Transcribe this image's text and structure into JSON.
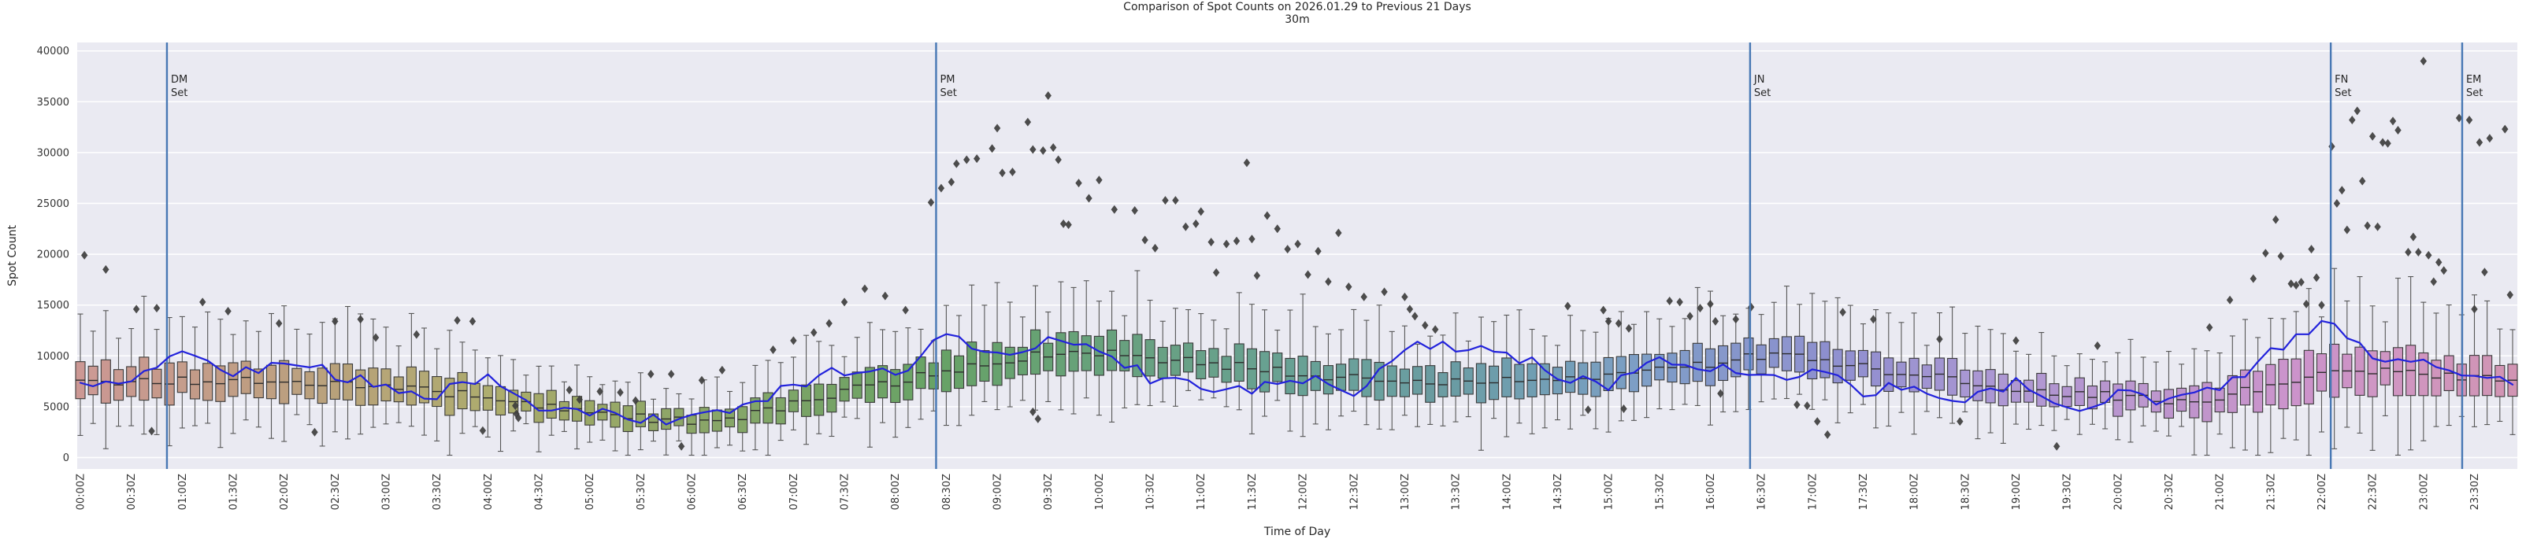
{
  "chart_data": {
    "type": "boxplot+line+scatter",
    "title": "Comparison of Spot Counts on 2026.01.29 to Previous 21 Days",
    "subtitle": "30m",
    "xlabel": "Time of Day",
    "ylabel": "Spot Count",
    "ylim": [
      0,
      40000
    ],
    "grid": true,
    "legend": "none",
    "yticks": [
      0,
      5000,
      10000,
      15000,
      20000,
      25000,
      30000,
      35000,
      40000
    ],
    "ytick_labels": [
      "0",
      "5000",
      "10000",
      "15000",
      "20000",
      "25000",
      "30000",
      "35000",
      "40000"
    ],
    "x_tick_labels": [
      "00:00Z",
      "00:30Z",
      "01:00Z",
      "01:30Z",
      "02:00Z",
      "02:30Z",
      "03:00Z",
      "03:30Z",
      "04:00Z",
      "04:30Z",
      "05:00Z",
      "05:30Z",
      "06:00Z",
      "06:30Z",
      "07:00Z",
      "07:30Z",
      "08:00Z",
      "08:30Z",
      "09:00Z",
      "09:30Z",
      "10:00Z",
      "10:30Z",
      "11:00Z",
      "11:30Z",
      "12:00Z",
      "12:30Z",
      "13:00Z",
      "13:30Z",
      "14:00Z",
      "14:30Z",
      "15:00Z",
      "15:30Z",
      "16:00Z",
      "16:30Z",
      "17:00Z",
      "17:30Z",
      "18:00Z",
      "18:30Z",
      "19:00Z",
      "19:30Z",
      "20:00Z",
      "20:30Z",
      "21:00Z",
      "21:30Z",
      "22:00Z",
      "22:30Z",
      "23:00Z",
      "23:30Z"
    ],
    "bin_minutes": 7.5,
    "n_bins": 192,
    "box_anchors": {
      "t": [
        0,
        0.5,
        1,
        1.5,
        2,
        2.5,
        3,
        3.5,
        4,
        4.5,
        5,
        5.5,
        6,
        6.5,
        7,
        7.5,
        8,
        8.5,
        9,
        9.5,
        10,
        10.5,
        11,
        11.5,
        12,
        12.5,
        13,
        13.5,
        14,
        14.5,
        15,
        15.5,
        16,
        16.5,
        17,
        17.5,
        18,
        18.5,
        19,
        19.5,
        20,
        20.5,
        21,
        21.5,
        22,
        22.5,
        23,
        23.5,
        24
      ],
      "median": [
        7600,
        7400,
        7600,
        7700,
        7500,
        7400,
        7000,
        6500,
        5900,
        5200,
        4500,
        3900,
        3600,
        4100,
        5200,
        6500,
        7400,
        8600,
        9600,
        10200,
        10400,
        9900,
        9300,
        8800,
        8300,
        7800,
        7500,
        7600,
        7700,
        7800,
        8000,
        8600,
        9300,
        9900,
        9700,
        8900,
        8300,
        7600,
        6800,
        6300,
        6000,
        5700,
        5900,
        7000,
        8000,
        8400,
        8200,
        7800,
        7500
      ]
    },
    "spread_anchors": {
      "t": [
        0,
        1,
        2,
        3,
        4,
        5,
        6,
        7,
        8,
        9,
        10,
        11,
        12,
        13,
        14,
        15,
        16,
        17,
        18,
        19,
        20,
        21,
        22,
        23,
        24
      ],
      "iqr_half": [
        1700,
        1750,
        1650,
        1500,
        1300,
        1000,
        900,
        1250,
        1500,
        1700,
        1700,
        1600,
        1500,
        1500,
        1550,
        1550,
        1650,
        1550,
        1400,
        1300,
        1200,
        1500,
        2100,
        1900,
        1700
      ]
    },
    "line_anchors": {
      "t": [
        0,
        0.5,
        1,
        1.5,
        2,
        2.5,
        3,
        3.5,
        4,
        4.5,
        5,
        5.5,
        6,
        6.5,
        7,
        7.5,
        8,
        8.5,
        9,
        9.5,
        10,
        10.5,
        11,
        11.5,
        12,
        12.5,
        13,
        13.5,
        14,
        14.5,
        15,
        15.5,
        16,
        16.5,
        17,
        17.5,
        18,
        18.5,
        19,
        19.5,
        20,
        20.5,
        21,
        21.5,
        22,
        22.5,
        23,
        23.5,
        24
      ],
      "value": [
        6900,
        7600,
        10600,
        8100,
        9500,
        8200,
        6900,
        6300,
        8300,
        4200,
        4600,
        3500,
        4100,
        5300,
        6900,
        8700,
        8100,
        12000,
        10500,
        11500,
        10800,
        7800,
        7200,
        6700,
        7800,
        6400,
        11200,
        11000,
        10400,
        8100,
        7100,
        9800,
        8900,
        7800,
        8600,
        6300,
        7200,
        5400,
        7200,
        4800,
        6200,
        5300,
        6600,
        10200,
        13600,
        10100,
        9300,
        8000,
        6600
      ]
    },
    "outliers": [
      [
        0.04,
        19900
      ],
      [
        0.25,
        18500
      ],
      [
        0.55,
        14600
      ],
      [
        0.7,
        2600
      ],
      [
        0.75,
        14700
      ],
      [
        1.2,
        15300
      ],
      [
        1.45,
        14400
      ],
      [
        1.95,
        13200
      ],
      [
        2.3,
        2500
      ],
      [
        2.5,
        13400
      ],
      [
        2.75,
        13600
      ],
      [
        2.9,
        11800
      ],
      [
        3.3,
        12100
      ],
      [
        3.7,
        13500
      ],
      [
        3.85,
        13400
      ],
      [
        3.95,
        2650
      ],
      [
        4.27,
        5100
      ],
      [
        4.28,
        4300
      ],
      [
        4.3,
        3900
      ],
      [
        4.8,
        6650
      ],
      [
        4.9,
        5700
      ],
      [
        5.1,
        6500
      ],
      [
        5.3,
        6400
      ],
      [
        5.45,
        5600
      ],
      [
        5.6,
        8200
      ],
      [
        5.8,
        8200
      ],
      [
        5.9,
        1100
      ],
      [
        6.1,
        7600
      ],
      [
        6.3,
        8600
      ],
      [
        6.8,
        10600
      ],
      [
        7.0,
        11500
      ],
      [
        7.2,
        12300
      ],
      [
        7.35,
        13200
      ],
      [
        7.5,
        15300
      ],
      [
        7.7,
        16600
      ],
      [
        7.9,
        15900
      ],
      [
        8.1,
        14500
      ],
      [
        8.35,
        25100
      ],
      [
        8.45,
        26500
      ],
      [
        8.55,
        27100
      ],
      [
        8.6,
        28900
      ],
      [
        8.7,
        29300
      ],
      [
        8.8,
        29400
      ],
      [
        8.95,
        30400
      ],
      [
        9.0,
        32400
      ],
      [
        9.05,
        28000
      ],
      [
        9.15,
        28100
      ],
      [
        9.3,
        33000
      ],
      [
        9.35,
        30300
      ],
      [
        9.35,
        4500
      ],
      [
        9.4,
        3800
      ],
      [
        9.45,
        30200
      ],
      [
        9.5,
        35600
      ],
      [
        9.55,
        30500
      ],
      [
        9.6,
        29300
      ],
      [
        9.65,
        23000
      ],
      [
        9.7,
        22900
      ],
      [
        9.8,
        27000
      ],
      [
        9.9,
        25500
      ],
      [
        10.0,
        27300
      ],
      [
        10.15,
        24400
      ],
      [
        10.35,
        24300
      ],
      [
        10.45,
        21400
      ],
      [
        10.55,
        20600
      ],
      [
        10.65,
        25300
      ],
      [
        10.75,
        25300
      ],
      [
        10.85,
        22700
      ],
      [
        10.95,
        23000
      ],
      [
        11.0,
        24200
      ],
      [
        11.1,
        21200
      ],
      [
        11.15,
        18200
      ],
      [
        11.25,
        21000
      ],
      [
        11.35,
        21300
      ],
      [
        11.45,
        29000
      ],
      [
        11.5,
        21500
      ],
      [
        11.55,
        17900
      ],
      [
        11.65,
        23800
      ],
      [
        11.75,
        22500
      ],
      [
        11.85,
        20500
      ],
      [
        11.95,
        21000
      ],
      [
        12.05,
        18000
      ],
      [
        12.15,
        20300
      ],
      [
        12.25,
        17300
      ],
      [
        12.35,
        22100
      ],
      [
        12.45,
        16800
      ],
      [
        12.6,
        15800
      ],
      [
        12.8,
        16300
      ],
      [
        13.0,
        15800
      ],
      [
        13.05,
        14600
      ],
      [
        13.1,
        13900
      ],
      [
        13.2,
        13000
      ],
      [
        13.3,
        12600
      ],
      [
        14.6,
        14900
      ],
      [
        14.8,
        4700
      ],
      [
        14.95,
        14500
      ],
      [
        15.0,
        13400
      ],
      [
        15.1,
        13200
      ],
      [
        15.15,
        4800
      ],
      [
        15.2,
        12700
      ],
      [
        15.6,
        15400
      ],
      [
        15.7,
        15300
      ],
      [
        15.8,
        13900
      ],
      [
        15.9,
        14700
      ],
      [
        16.0,
        15100
      ],
      [
        16.05,
        13400
      ],
      [
        16.1,
        6300
      ],
      [
        16.25,
        13600
      ],
      [
        16.4,
        14800
      ],
      [
        16.85,
        5200
      ],
      [
        16.95,
        5100
      ],
      [
        17.05,
        3550
      ],
      [
        17.15,
        2250
      ],
      [
        17.3,
        14300
      ],
      [
        17.6,
        13600
      ],
      [
        18.25,
        11650
      ],
      [
        18.45,
        3550
      ],
      [
        19.0,
        11500
      ],
      [
        19.4,
        1100
      ],
      [
        19.8,
        11000
      ],
      [
        20.9,
        12800
      ],
      [
        21.1,
        15500
      ],
      [
        21.33,
        17600
      ],
      [
        21.45,
        20100
      ],
      [
        21.55,
        23400
      ],
      [
        21.6,
        19800
      ],
      [
        21.7,
        17100
      ],
      [
        21.75,
        16950
      ],
      [
        21.8,
        17250
      ],
      [
        21.85,
        15100
      ],
      [
        21.9,
        20500
      ],
      [
        21.95,
        17700
      ],
      [
        22.0,
        15000
      ],
      [
        22.1,
        30600
      ],
      [
        22.15,
        25000
      ],
      [
        22.2,
        26300
      ],
      [
        22.25,
        22400
      ],
      [
        22.3,
        33200
      ],
      [
        22.35,
        34100
      ],
      [
        22.4,
        27200
      ],
      [
        22.45,
        22800
      ],
      [
        22.5,
        31600
      ],
      [
        22.55,
        22700
      ],
      [
        22.6,
        31000
      ],
      [
        22.65,
        30900
      ],
      [
        22.7,
        33100
      ],
      [
        22.75,
        32200
      ],
      [
        22.85,
        20200
      ],
      [
        22.9,
        21700
      ],
      [
        22.95,
        20200
      ],
      [
        23.0,
        39000
      ],
      [
        23.05,
        19900
      ],
      [
        23.1,
        17300
      ],
      [
        23.15,
        19200
      ],
      [
        23.2,
        18400
      ],
      [
        23.35,
        33400
      ],
      [
        23.45,
        33200
      ],
      [
        23.5,
        14600
      ],
      [
        23.55,
        31000
      ],
      [
        23.6,
        18250
      ],
      [
        23.65,
        31400
      ],
      [
        23.8,
        32300
      ],
      [
        23.85,
        16000
      ]
    ],
    "vlines": [
      {
        "lines": [
          "DM",
          "Set"
        ],
        "t": 0.85
      },
      {
        "lines": [
          "PM",
          "Set"
        ],
        "t": 8.4
      },
      {
        "lines": [
          "JN",
          "Set"
        ],
        "t": 16.39
      },
      {
        "lines": [
          "FN",
          "Set"
        ],
        "t": 22.09
      },
      {
        "lines": [
          "EM",
          "Set"
        ],
        "t": 23.38
      }
    ],
    "style": {
      "axes_bg": "#eaeaf2",
      "grid_color": "#ffffff",
      "current_day_line": "#2222dc",
      "vline_color": "#4878b4",
      "outlier_color": "#3e3e3e",
      "box_edge": "#3b3b3b",
      "median_color": "#2d2d2d",
      "whisker_color": "#565656",
      "tick_text": "#333333",
      "label_text": "#262626",
      "palette": {
        "hue_start": 4,
        "hue_end": 330,
        "hue_points": [
          0,
          40,
          70,
          130,
          185,
          215,
          235,
          260,
          290,
          330
        ],
        "light": [
          70,
          60,
          53,
          52,
          52,
          64,
          68,
          71,
          69,
          70
        ],
        "sat": [
          36,
          30,
          27,
          24,
          22,
          40,
          40,
          40,
          34,
          40
        ]
      },
      "jitter": {
        "seed": 11,
        "median_amp": 450,
        "iqr_rel": 0.55,
        "line_amp": 650
      }
    }
  }
}
